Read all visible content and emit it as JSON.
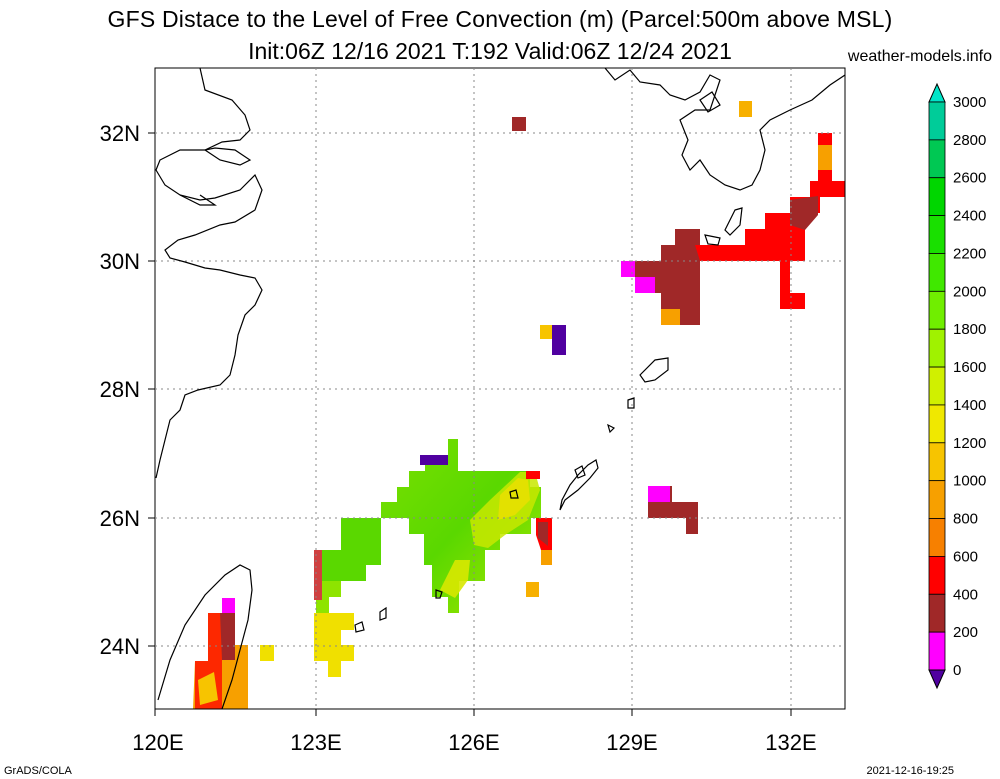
{
  "title": {
    "line1": "GFS Distace to the Level of Free Convection (m) (Parcel:500m above MSL)",
    "line2": "Init:06Z 12/16 2021 T:192 Valid:06Z 12/24 2021"
  },
  "site": "weather-models.info",
  "footer": {
    "left": "GrADS/COLA",
    "right": "2021-12-16-19:25"
  },
  "map": {
    "lon_ticks": [
      "120E",
      "123E",
      "126E",
      "129E",
      "132E"
    ],
    "lat_ticks": [
      "32N",
      "30N",
      "28N",
      "26N",
      "24N"
    ]
  },
  "colorbar": {
    "labels": [
      "3000",
      "2800",
      "2600",
      "2400",
      "2200",
      "2000",
      "1800",
      "1600",
      "1400",
      "1200",
      "1000",
      "800",
      "600",
      "400",
      "200",
      "0"
    ],
    "colors": [
      "#00e5c8",
      "#00cc99",
      "#00c853",
      "#00d600",
      "#19e000",
      "#40e800",
      "#70ee00",
      "#a0f200",
      "#d0f000",
      "#f0e800",
      "#f7c400",
      "#f7a000",
      "#f78000",
      "#ff0000",
      "#a02828",
      "#ff00ff",
      "#5000a0"
    ]
  }
}
